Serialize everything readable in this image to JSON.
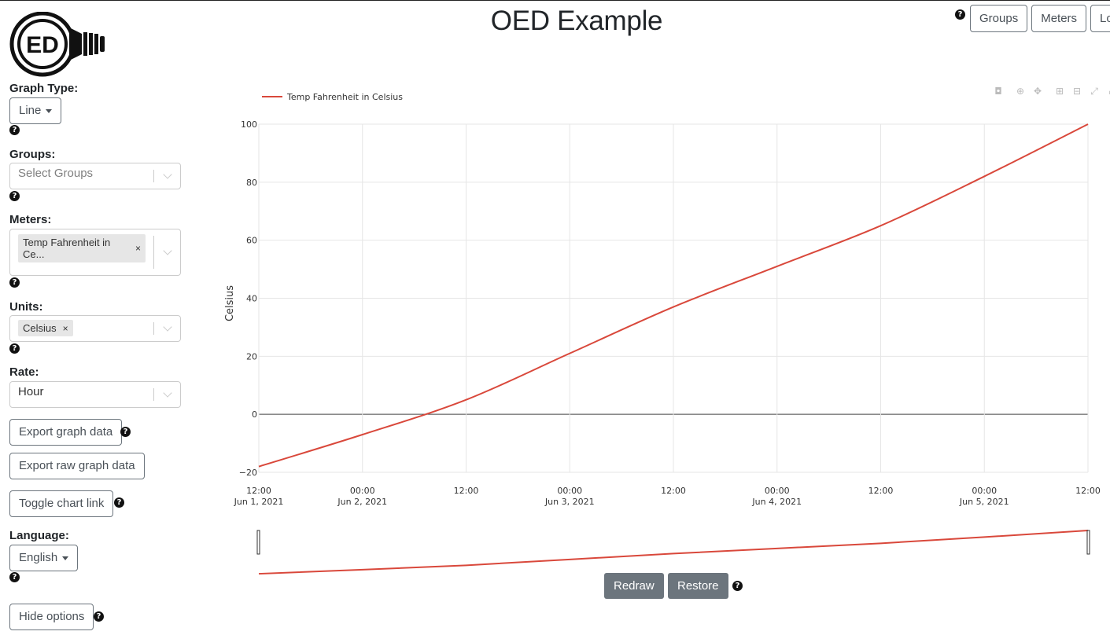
{
  "app": {
    "title": "OED Example",
    "logo_text": "ED"
  },
  "nav": {
    "help_icon": "question-circle-icon",
    "groups_label": "Groups",
    "meters_label": "Meters",
    "log_label": "Log"
  },
  "sidebar": {
    "graph_type": {
      "label": "Graph Type:",
      "value": "Line"
    },
    "groups": {
      "label": "Groups:",
      "placeholder": "Select Groups"
    },
    "meters": {
      "label": "Meters:",
      "chips": [
        "Temp Fahrenheit in Ce..."
      ]
    },
    "units": {
      "label": "Units:",
      "chips": [
        "Celsius"
      ]
    },
    "rate": {
      "label": "Rate:",
      "value": "Hour"
    },
    "export_graph_label": "Export graph data",
    "export_raw_label": "Export raw graph data",
    "toggle_link_label": "Toggle chart link",
    "language": {
      "label": "Language:",
      "value": "English"
    },
    "hide_options_label": "Hide options",
    "chip_remove": "×"
  },
  "chart_controls": {
    "redraw_label": "Redraw",
    "restore_label": "Restore"
  },
  "colors": {
    "series": "#d9483b",
    "grid": "#e6e6e6",
    "zero_line": "#444444",
    "button_dark": "#6c757d"
  },
  "chart_data": {
    "type": "line",
    "legend_position": "top-left",
    "series": [
      {
        "name": "Temp Fahrenheit in Celsius",
        "x": [
          "2021-06-01 12:00",
          "2021-06-02 00:00",
          "2021-06-02 12:00",
          "2021-06-03 00:00",
          "2021-06-03 12:00",
          "2021-06-04 00:00",
          "2021-06-04 12:00",
          "2021-06-05 00:00",
          "2021-06-05 12:00"
        ],
        "y": [
          -18,
          -7,
          5,
          21,
          37,
          51,
          65,
          82,
          100
        ]
      }
    ],
    "ylabel": "Celsius",
    "xlabel": "",
    "ylim": [
      -20,
      100
    ],
    "y_ticks": [
      "−20",
      "0",
      "20",
      "40",
      "60",
      "80",
      "100"
    ],
    "x_ticks": [
      {
        "time": "12:00",
        "date": "Jun 1, 2021"
      },
      {
        "time": "00:00",
        "date": "Jun 2, 2021"
      },
      {
        "time": "12:00",
        "date": ""
      },
      {
        "time": "00:00",
        "date": "Jun 3, 2021"
      },
      {
        "time": "12:00",
        "date": ""
      },
      {
        "time": "00:00",
        "date": "Jun 4, 2021"
      },
      {
        "time": "12:00",
        "date": ""
      },
      {
        "time": "00:00",
        "date": "Jun 5, 2021"
      },
      {
        "time": "12:00",
        "date": ""
      }
    ],
    "grid": true,
    "range_slider": true
  }
}
